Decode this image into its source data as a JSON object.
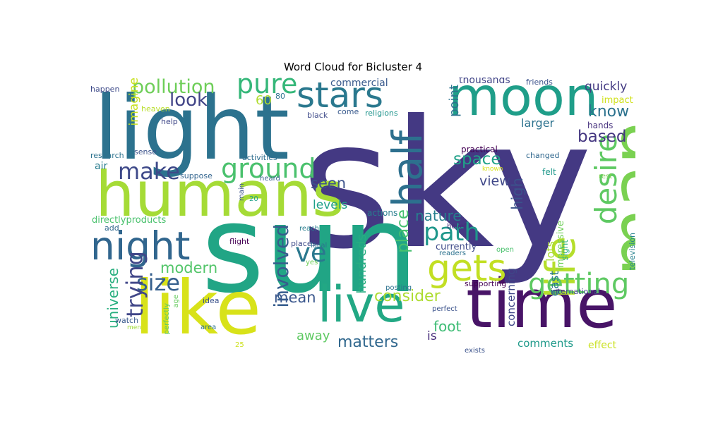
{
  "title": "Word Cloud for Bicluster 4",
  "colors": {
    "background": "#ffffff"
  },
  "words": [
    {
      "text": "sky",
      "color": "#443983"
    },
    {
      "text": "sun",
      "color": "#21a585"
    },
    {
      "text": "light",
      "color": "#2c728e"
    },
    {
      "text": "humans",
      "color": "#a5db36"
    },
    {
      "text": "like",
      "color": "#d8e219"
    },
    {
      "text": "moon",
      "color": "#1f9e89"
    },
    {
      "text": "time",
      "color": "#481467"
    },
    {
      "text": "man",
      "color": "#7ad151"
    },
    {
      "text": "live",
      "color": "#22a884"
    },
    {
      "text": "stars",
      "color": "#2a788e"
    },
    {
      "text": "half",
      "color": "#2d708e"
    },
    {
      "text": "night",
      "color": "#31668e"
    },
    {
      "text": "gets",
      "color": "#c2df23"
    },
    {
      "text": "life",
      "color": "#b5de2b"
    },
    {
      "text": "ground",
      "color": "#4ac16d"
    },
    {
      "text": "pure",
      "color": "#35b779"
    },
    {
      "text": "make",
      "color": "#3e4989"
    },
    {
      "text": "path",
      "color": "#1f978b"
    },
    {
      "text": "desire",
      "color": "#5ec962"
    },
    {
      "text": "getting",
      "color": "#5ec962"
    },
    {
      "text": "ve",
      "color": "#2a788e"
    },
    {
      "text": "pollution",
      "color": "#6ece58"
    },
    {
      "text": "size",
      "color": "#355f8d"
    },
    {
      "text": "trying",
      "color": "#404688"
    },
    {
      "text": "involved",
      "color": "#365c8d"
    },
    {
      "text": "look",
      "color": "#414487"
    },
    {
      "text": "universe",
      "color": "#29af7f"
    },
    {
      "text": "matters",
      "color": "#31688e"
    },
    {
      "text": "consider",
      "color": "#addc30"
    },
    {
      "text": "place",
      "color": "#46c06f"
    },
    {
      "text": "hundreds",
      "color": "#27ad81"
    },
    {
      "text": "space",
      "color": "#1fa188"
    },
    {
      "text": "modern",
      "color": "#52c569"
    },
    {
      "text": "based",
      "color": "#453781"
    },
    {
      "text": "know",
      "color": "#2c728e"
    },
    {
      "text": "mean",
      "color": "#39568c"
    },
    {
      "text": "foot",
      "color": "#3dbc74"
    },
    {
      "text": "nature",
      "color": "#277f8e"
    },
    {
      "text": "high",
      "color": "#3b528b"
    },
    {
      "text": "point",
      "color": "#2c728e"
    },
    {
      "text": "seen",
      "color": "#3b528b"
    },
    {
      "text": "view",
      "color": "#3f4788"
    },
    {
      "text": "imagine",
      "color": "#c8e020"
    },
    {
      "text": "60",
      "color": "#b0dd2f"
    },
    {
      "text": "quickly",
      "color": "#443a83"
    },
    {
      "text": "lots",
      "color": "#a8db34"
    },
    {
      "text": "away",
      "color": "#5ec962"
    },
    {
      "text": "is",
      "color": "#472c7a"
    },
    {
      "text": "levels",
      "color": "#1fa088"
    },
    {
      "text": "air",
      "color": "#287c8e"
    },
    {
      "text": "directlyproducts",
      "color": "#4ac16d"
    },
    {
      "text": "larger",
      "color": "#2c728e"
    },
    {
      "text": "currently",
      "color": "#3e4a89"
    },
    {
      "text": "east",
      "color": "#2a788e"
    },
    {
      "text": "concerning",
      "color": "#3f4788"
    },
    {
      "text": "comments",
      "color": "#1f9a8a"
    },
    {
      "text": "effect",
      "color": "#cae11f"
    },
    {
      "text": "thousands",
      "color": "#414487"
    },
    {
      "text": "commercial",
      "color": "#38598c"
    },
    {
      "text": "actions",
      "color": "#287d8e"
    },
    {
      "text": "impressive",
      "color": "#6ece58"
    },
    {
      "text": "hands",
      "color": "#46327e"
    },
    {
      "text": "impact",
      "color": "#d0e11c"
    },
    {
      "text": "friends",
      "color": "#3b528b"
    },
    {
      "text": "felt",
      "color": "#1f988b"
    },
    {
      "text": "sight",
      "color": "#29af7f"
    },
    {
      "text": "practical",
      "color": "#440154"
    },
    {
      "text": "international",
      "color": "#3e4989"
    },
    {
      "text": "television",
      "color": "#26828e"
    },
    {
      "text": "rest",
      "color": "#7ad151"
    },
    {
      "text": "changed",
      "color": "#31688e"
    },
    {
      "text": "happen",
      "color": "#3e4a89"
    },
    {
      "text": "heaven",
      "color": "#b8de29"
    },
    {
      "text": "help",
      "color": "#3f4788"
    },
    {
      "text": "research",
      "color": "#2c728e"
    },
    {
      "text": "sense",
      "color": "#3b528b"
    },
    {
      "text": "activities",
      "color": "#2e6e8e"
    },
    {
      "text": "suppose",
      "color": "#32648e"
    },
    {
      "text": "heard",
      "color": "#35608d"
    },
    {
      "text": "black",
      "color": "#3e4a89"
    },
    {
      "text": "religions",
      "color": "#1f948c"
    },
    {
      "text": "come",
      "color": "#38598c"
    },
    {
      "text": "80",
      "color": "#2c728e"
    },
    {
      "text": "main",
      "color": "#3b528b"
    },
    {
      "text": "20",
      "color": "#1fa088"
    },
    {
      "text": "add",
      "color": "#31688e"
    },
    {
      "text": "flight",
      "color": "#440154"
    },
    {
      "text": "places",
      "color": "#3e4a89"
    },
    {
      "text": "reach",
      "color": "#287d8e"
    },
    {
      "text": "yes",
      "color": "#6ece58"
    },
    {
      "text": "local",
      "color": "#2c728e"
    },
    {
      "text": "belief",
      "color": "#472d7b"
    },
    {
      "text": "known",
      "color": "#d8e219"
    },
    {
      "text": "open",
      "color": "#4ac16d"
    },
    {
      "text": "readers",
      "color": "#2c728e"
    },
    {
      "text": "posting",
      "color": "#2c728e"
    },
    {
      "text": "supporting",
      "color": "#440154"
    },
    {
      "text": "perfect",
      "color": "#3b528b"
    },
    {
      "text": "exists",
      "color": "#3b528b"
    },
    {
      "text": "idea",
      "color": "#3b528b"
    },
    {
      "text": "age",
      "color": "#65cb5e"
    },
    {
      "text": "watch",
      "color": "#38598c"
    },
    {
      "text": "men",
      "color": "#9fda3a"
    },
    {
      "text": "perfectly",
      "color": "#5ec962"
    },
    {
      "text": "area",
      "color": "#2c728e"
    },
    {
      "text": "25",
      "color": "#cde11d"
    }
  ]
}
